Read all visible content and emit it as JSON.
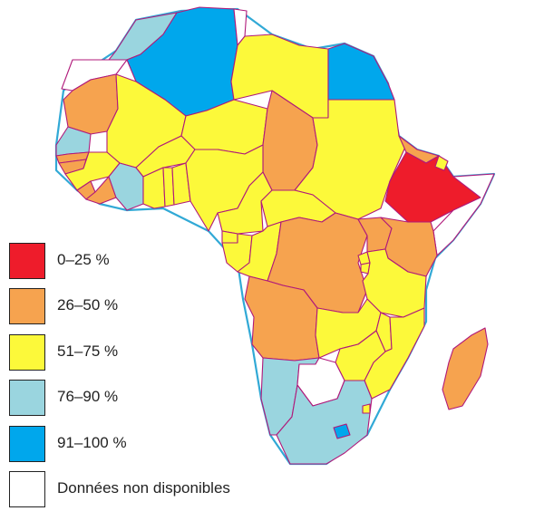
{
  "colors": {
    "c0_25": "#ee1c2b",
    "c26_50": "#f6a34f",
    "c51_75": "#fcf93a",
    "c76_90": "#9ad5df",
    "c91_100": "#00a7ec",
    "na": "#ffffff",
    "border": "#b0197a",
    "coast": "#31a9d6"
  },
  "legend": {
    "items": [
      {
        "key": "c0_25",
        "label": "0–25  %",
        "color": "#ee1c2b"
      },
      {
        "key": "c26_50",
        "label": "26–50 %",
        "color": "#f6a34f"
      },
      {
        "key": "c51_75",
        "label": "51–75 %",
        "color": "#fcf93a"
      },
      {
        "key": "c76_90",
        "label": "76–90 %",
        "color": "#9ad5df"
      },
      {
        "key": "c91_100",
        "label": "91–100 %",
        "color": "#00a7ec"
      },
      {
        "key": "na",
        "label": "Données non disponibles",
        "color": "#ffffff"
      }
    ]
  },
  "regions": {
    "morocco": "c76_90",
    "western-sahara": "na",
    "algeria": "c91_100",
    "tunisia": "na",
    "libya": "c51_75",
    "egypt": "c91_100",
    "mauritania": "c26_50",
    "mali": "c51_75",
    "niger": "c51_75",
    "chad": "c26_50",
    "sudan": "c51_75",
    "eritrea": "c26_50",
    "ethiopia": "c0_25",
    "djibouti": "c51_75",
    "somalia": "na",
    "senegal": "c76_90",
    "gambia": "c26_50",
    "guinea-bissau": "c26_50",
    "guinea": "c51_75",
    "sierra-leone": "c26_50",
    "liberia": "c26_50",
    "ivory-coast": "c76_90",
    "burkina-faso": "c51_75",
    "ghana": "c51_75",
    "togo": "c51_75",
    "benin": "c51_75",
    "nigeria": "c51_75",
    "cameroon": "c51_75",
    "car": "c51_75",
    "equatorial-guinea": "c51_75",
    "gabon": "c51_75",
    "congo": "c51_75",
    "drc": "c26_50",
    "uganda": "c26_50",
    "kenya": "c26_50",
    "rwanda": "c51_75",
    "burundi": "c51_75",
    "tanzania": "c51_75",
    "angola": "c26_50",
    "zambia": "c51_75",
    "malawi": "c51_75",
    "mozambique": "c51_75",
    "zimbabwe": "c51_75",
    "namibia": "c76_90",
    "botswana": "na",
    "south-africa": "c76_90",
    "lesotho": "c91_100",
    "swaziland": "c51_75",
    "madagascar": "c26_50"
  }
}
